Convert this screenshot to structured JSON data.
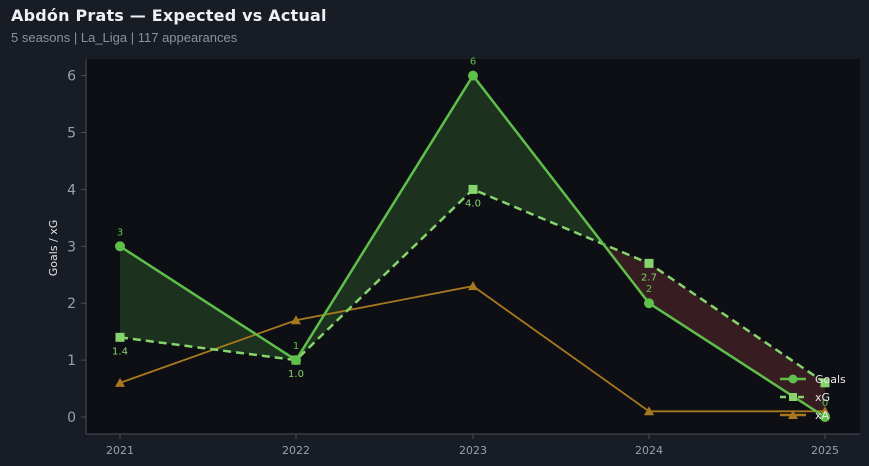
{
  "header": {
    "title": "Abdón Prats — Expected vs Actual",
    "subtitle": "5 seasons | La_Liga | 117 appearances"
  },
  "colors": {
    "goals": "#5fbf4b",
    "xg": "#86d46b",
    "xa": "#a8781f",
    "overperform_fill": "#1d3520",
    "underperform_fill": "#3a1e22",
    "plot_bg": "#0d0f15"
  },
  "chart_data": {
    "type": "line",
    "title": "",
    "xlabel": "",
    "ylabel": "Goals / xG",
    "x": [
      "2021",
      "2022",
      "2023",
      "2024",
      "2025"
    ],
    "ylim": [
      -0.3,
      6.3
    ],
    "yticks": [
      0,
      1,
      2,
      3,
      4,
      5,
      6
    ],
    "grid": false,
    "legend_position": "bottom-right",
    "series": [
      {
        "name": "Goals",
        "key": "goals",
        "values": [
          3,
          1,
          6,
          2,
          0
        ],
        "labels": [
          "3",
          "1",
          "6",
          "2",
          "0"
        ],
        "marker": "circle",
        "style": "solid"
      },
      {
        "name": "xG",
        "key": "xg",
        "values": [
          1.4,
          1.0,
          4.0,
          2.7,
          0.6
        ],
        "labels": [
          "1.4",
          "1.0",
          "4.0",
          "2.7",
          ""
        ],
        "marker": "square",
        "style": "dashed"
      },
      {
        "name": "xA",
        "key": "xa",
        "values": [
          0.6,
          1.7,
          2.3,
          0.1,
          0.1
        ],
        "marker": "triangle",
        "style": "solid"
      }
    ]
  }
}
